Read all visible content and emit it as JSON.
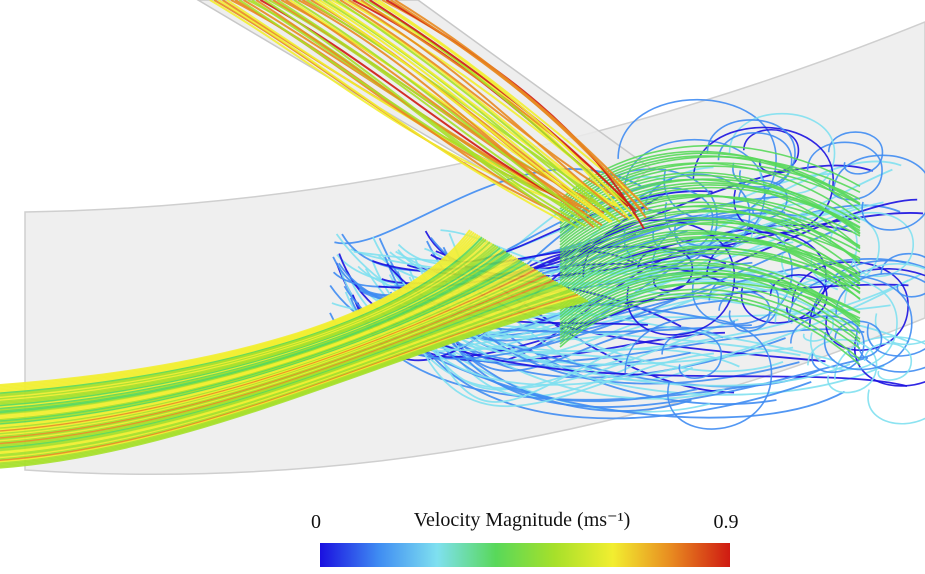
{
  "colorbar": {
    "title": "Velocity Magnitude (ms⁻¹)",
    "min": 0,
    "max": 0.9,
    "colormap": [
      "#1a10e0",
      "#3f8cf2",
      "#7fe0f0",
      "#58d85a",
      "#a6e02a",
      "#f2ee30",
      "#e88a20",
      "#cf1a12"
    ]
  }
}
